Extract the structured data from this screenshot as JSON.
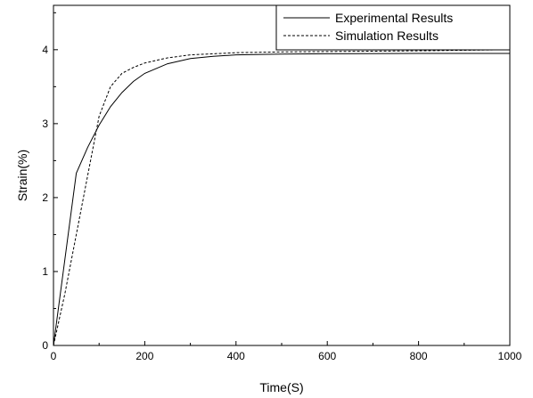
{
  "chart_data": {
    "type": "line",
    "title": "",
    "xlabel": "Time(S)",
    "ylabel": "Strain(%)",
    "xlim": [
      0,
      1000
    ],
    "ylim": [
      0,
      4.6
    ],
    "xticks": [
      0,
      200,
      400,
      600,
      800,
      1000
    ],
    "yticks": [
      0,
      1,
      2,
      3,
      4
    ],
    "grid": false,
    "legend_position": "top-right",
    "series": [
      {
        "name": "Experimental Results",
        "style": "solid",
        "color": "#000000",
        "x": [
          0,
          50,
          75,
          100,
          125,
          150,
          175,
          200,
          250,
          300,
          350,
          400,
          500,
          600,
          800,
          1000
        ],
        "y": [
          0,
          2.33,
          2.68,
          2.98,
          3.23,
          3.42,
          3.57,
          3.68,
          3.81,
          3.88,
          3.91,
          3.93,
          3.94,
          3.945,
          3.95,
          3.95
        ]
      },
      {
        "name": "Simulation Results",
        "style": "dashed",
        "color": "#000000",
        "x": [
          0,
          25,
          50,
          75,
          100,
          125,
          150,
          175,
          200,
          250,
          300,
          400,
          500,
          600,
          800,
          1000
        ],
        "y": [
          0,
          0.7,
          1.5,
          2.3,
          3.1,
          3.5,
          3.68,
          3.76,
          3.82,
          3.89,
          3.93,
          3.96,
          3.97,
          3.975,
          3.985,
          4.0
        ]
      }
    ]
  }
}
